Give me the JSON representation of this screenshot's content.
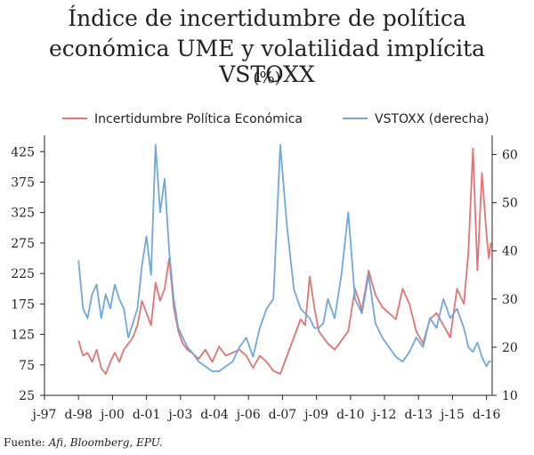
{
  "colors": {
    "epu": "#E57373",
    "vstoxx": "#6FA8DC",
    "axis": "#222222"
  },
  "chart_data": {
    "type": "line",
    "title_line1": "Índice de incertidumbre de política",
    "title_line2": "económica UME y volatilidad implícita VSTOXX",
    "subtitle": "(%)",
    "source_prefix": "Fuente:",
    "source_items": "Afi, Bloomberg, EPU.",
    "x_ticks": [
      "j-97",
      "d-98",
      "j-00",
      "d-01",
      "j-03",
      "d-04",
      "j-06",
      "d-07",
      "j-09",
      "d-10",
      "j-12",
      "d-13",
      "j-15",
      "d-16"
    ],
    "x_tick_t": [
      1997.5,
      1999.0,
      2000.5,
      2002.0,
      2003.5,
      2005.0,
      2006.5,
      2008.0,
      2009.5,
      2011.0,
      2012.5,
      2014.0,
      2015.5,
      2017.0
    ],
    "xlim": [
      1997.5,
      2017.25
    ],
    "y_left": {
      "ticks": [
        25,
        75,
        125,
        175,
        225,
        275,
        325,
        375,
        425
      ],
      "lim": [
        25,
        440
      ]
    },
    "y_right": {
      "ticks": [
        10,
        20,
        30,
        40,
        50,
        60
      ],
      "lim": [
        10,
        62.5
      ]
    },
    "series": [
      {
        "name": "Incertidumbre Política Económica",
        "axis": "left",
        "color": "#E57373",
        "x": [
          1999.0,
          1999.2,
          1999.4,
          1999.6,
          1999.8,
          2000.0,
          2000.2,
          2000.4,
          2000.6,
          2000.8,
          2001.0,
          2001.2,
          2001.4,
          2001.6,
          2001.8,
          2002.0,
          2002.2,
          2002.4,
          2002.6,
          2002.8,
          2003.0,
          2003.2,
          2003.4,
          2003.6,
          2003.8,
          2004.0,
          2004.3,
          2004.6,
          2004.9,
          2005.2,
          2005.5,
          2005.8,
          2006.1,
          2006.4,
          2006.7,
          2007.0,
          2007.3,
          2007.6,
          2007.9,
          2008.2,
          2008.5,
          2008.8,
          2009.0,
          2009.2,
          2009.4,
          2009.6,
          2009.8,
          2010.0,
          2010.3,
          2010.6,
          2010.9,
          2011.2,
          2011.5,
          2011.8,
          2012.1,
          2012.4,
          2012.7,
          2013.0,
          2013.3,
          2013.6,
          2013.9,
          2014.2,
          2014.5,
          2014.8,
          2015.1,
          2015.4,
          2015.7,
          2016.0,
          2016.2,
          2016.4,
          2016.6,
          2016.8,
          2017.0,
          2017.1,
          2017.2
        ],
        "values": [
          115,
          90,
          95,
          80,
          100,
          70,
          60,
          80,
          95,
          80,
          100,
          110,
          120,
          140,
          180,
          160,
          140,
          210,
          180,
          200,
          250,
          170,
          130,
          110,
          100,
          95,
          85,
          100,
          80,
          105,
          90,
          95,
          100,
          90,
          70,
          90,
          80,
          65,
          60,
          90,
          120,
          150,
          140,
          220,
          170,
          130,
          120,
          110,
          100,
          115,
          130,
          200,
          165,
          230,
          190,
          170,
          160,
          150,
          200,
          175,
          130,
          110,
          150,
          160,
          140,
          120,
          200,
          175,
          260,
          430,
          230,
          390,
          290,
          250,
          275
        ]
      },
      {
        "name": "VSTOXX (derecha)",
        "axis": "right",
        "color": "#6FA8DC",
        "x": [
          1999.0,
          1999.2,
          1999.4,
          1999.6,
          1999.8,
          2000.0,
          2000.2,
          2000.4,
          2000.6,
          2000.8,
          2001.0,
          2001.2,
          2001.4,
          2001.6,
          2001.8,
          2002.0,
          2002.2,
          2002.4,
          2002.6,
          2002.8,
          2003.0,
          2003.2,
          2003.4,
          2003.6,
          2003.8,
          2004.0,
          2004.3,
          2004.6,
          2004.9,
          2005.2,
          2005.5,
          2005.8,
          2006.1,
          2006.4,
          2006.7,
          2007.0,
          2007.3,
          2007.6,
          2007.9,
          2008.2,
          2008.5,
          2008.8,
          2009.0,
          2009.2,
          2009.4,
          2009.6,
          2009.8,
          2010.0,
          2010.3,
          2010.6,
          2010.9,
          2011.2,
          2011.5,
          2011.8,
          2012.1,
          2012.4,
          2012.7,
          2013.0,
          2013.3,
          2013.6,
          2013.9,
          2014.2,
          2014.5,
          2014.8,
          2015.1,
          2015.4,
          2015.7,
          2016.0,
          2016.2,
          2016.4,
          2016.6,
          2016.8,
          2017.0,
          2017.1,
          2017.2
        ],
        "values": [
          38,
          28,
          26,
          31,
          33,
          26,
          31,
          28,
          33,
          30,
          28,
          22,
          25,
          28,
          37,
          43,
          35,
          62,
          48,
          55,
          40,
          30,
          24,
          22,
          20,
          19,
          17,
          16,
          15,
          15,
          16,
          17,
          20,
          22,
          18,
          24,
          28,
          30,
          62,
          45,
          32,
          28,
          27,
          26,
          24,
          24,
          25,
          30,
          26,
          35,
          48,
          30,
          27,
          35,
          25,
          22,
          20,
          18,
          17,
          19,
          22,
          20,
          26,
          24,
          30,
          26,
          28,
          24,
          20,
          19,
          21,
          18,
          16,
          17,
          17
        ]
      }
    ]
  }
}
